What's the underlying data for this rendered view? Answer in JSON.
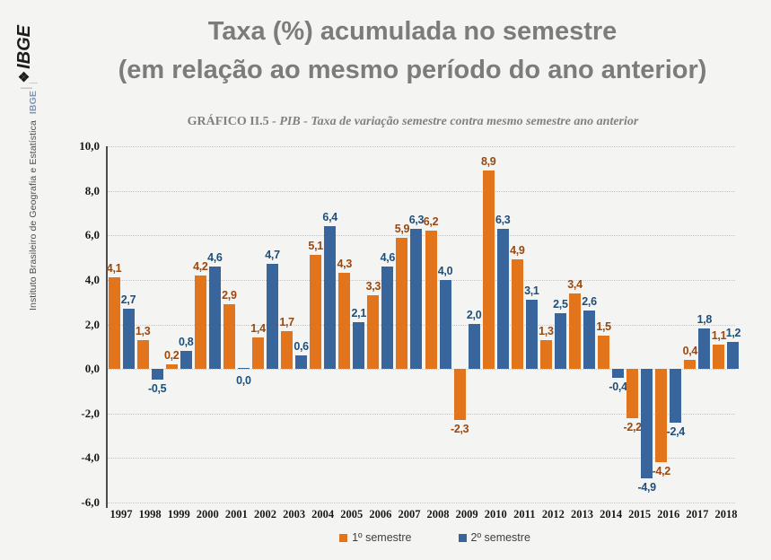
{
  "sidebar": {
    "logo_separator": "|",
    "logo_icon": "❖",
    "logo_text": "IBGE",
    "institution": "Instituto Brasileiro de Geografia e Estatística",
    "brand": "IBGE",
    "brand_separator": "|"
  },
  "header": {
    "title_line1": "Taxa (%) acumulada no semestre",
    "title_line2": "(em relação ao mesmo período do ano anterior)"
  },
  "subtitle": {
    "label": "GRÁFICO II.5 ",
    "text": "- PIB  - Taxa  de variação semestre contra mesmo semestre ano anterior"
  },
  "chart_data": {
    "type": "bar",
    "title": "Taxa (%) acumulada no semestre (em relação ao mesmo período do ano anterior)",
    "categories": [
      "1997",
      "1998",
      "1999",
      "2000",
      "2001",
      "2002",
      "2003",
      "2004",
      "2005",
      "2006",
      "2007",
      "2008",
      "2009",
      "2010",
      "2011",
      "2012",
      "2013",
      "2014",
      "2015",
      "2016",
      "2017",
      "2018"
    ],
    "series": [
      {
        "name": "1º semestre",
        "color": "#e2741c",
        "label_color": "#9a480f",
        "values": [
          4.1,
          1.3,
          0.2,
          4.2,
          2.9,
          1.4,
          1.7,
          5.1,
          4.3,
          3.3,
          5.9,
          6.2,
          -2.3,
          8.9,
          4.9,
          1.3,
          3.4,
          1.5,
          -2.2,
          -4.2,
          0.4,
          1.1
        ]
      },
      {
        "name": "2º semestre",
        "color": "#38659b",
        "label_color": "#1f4e79",
        "values": [
          2.7,
          -0.5,
          0.8,
          4.6,
          0.0,
          4.7,
          0.6,
          6.4,
          2.1,
          4.6,
          6.3,
          4.0,
          2.0,
          6.3,
          3.1,
          2.5,
          2.6,
          -0.4,
          -4.9,
          -2.4,
          1.8,
          1.2
        ]
      }
    ],
    "ylim": [
      -6,
      10
    ],
    "ytick_step": 2,
    "ytick_labels": [
      "10,0",
      "8,0",
      "6,0",
      "4,0",
      "2,0",
      "0,0",
      "-2,0",
      "-4,0",
      "-6,0"
    ],
    "decimal_separator": ",",
    "grid": "horizontal-dotted",
    "legend_position": "bottom",
    "data_labels": "outside-end"
  }
}
